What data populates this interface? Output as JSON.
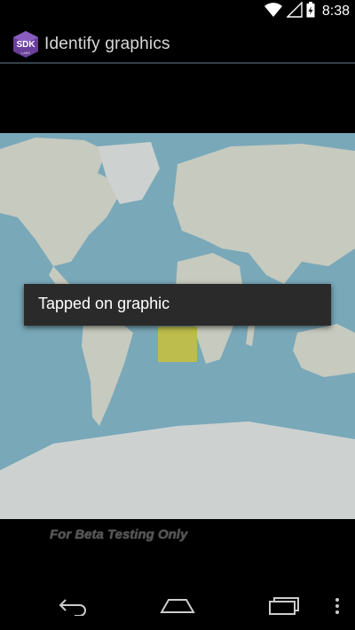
{
  "status_bar": {
    "time": "8:38"
  },
  "app": {
    "icon_text_main": "SDK",
    "icon_text_sub": "LABS",
    "title": "Identify graphics"
  },
  "map": {
    "toast_message": "Tapped on graphic",
    "watermark": "For Beta Testing Only",
    "highlight_color": "#d6cc00",
    "ocean_color": "#5aa7c5",
    "land_color": "#e8e3cf"
  },
  "navigation": {
    "back": "back-icon",
    "home": "home-icon",
    "recents": "recents-icon",
    "menu": "overflow-menu-icon"
  }
}
